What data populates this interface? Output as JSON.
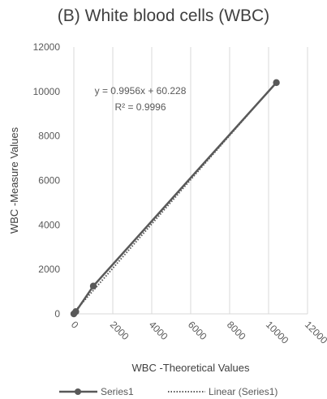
{
  "chart_data": {
    "type": "scatter",
    "title": "(B) White blood cells (WBC)",
    "xlabel": "WBC -Theoretical Values",
    "ylabel": "WBC -Measure Values",
    "xlim": [
      0,
      12000
    ],
    "ylim": [
      0,
      12000
    ],
    "xticks": [
      "0",
      "2000",
      "4000",
      "6000",
      "8000",
      "10000",
      "12000"
    ],
    "yticks": [
      "0",
      "2000",
      "4000",
      "6000",
      "8000",
      "10000",
      "12000"
    ],
    "grid": "vertical",
    "series": [
      {
        "name": "Series1",
        "style": "line-marker",
        "color": "#595959",
        "points": [
          [
            0,
            0
          ],
          [
            100,
            100
          ],
          [
            1000,
            1250
          ],
          [
            10400,
            10400
          ]
        ]
      },
      {
        "name": "Linear (Series1)",
        "style": "dotted",
        "color": "#595959",
        "trendline": {
          "slope": 0.9956,
          "intercept": 60.228
        }
      }
    ],
    "annotations": {
      "equation": "y = 0.9956x + 60.228",
      "r2": "R² = 0.9996"
    },
    "legend": {
      "placement": "bottom",
      "entries": [
        "Series1",
        "Linear (Series1)"
      ]
    }
  }
}
